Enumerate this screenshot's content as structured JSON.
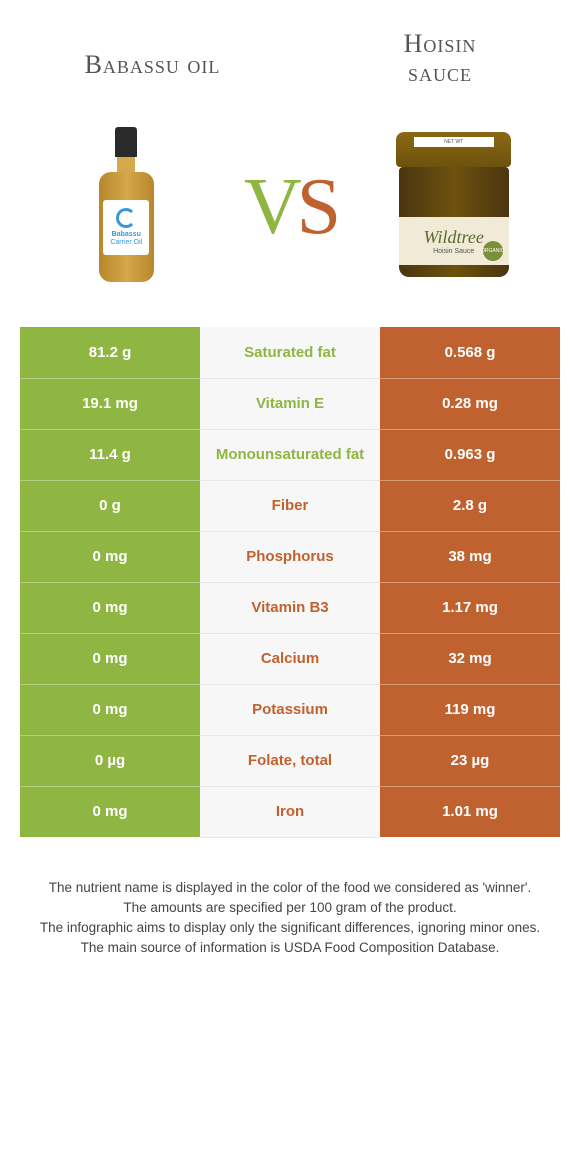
{
  "header": {
    "left_title": "Babassu oil",
    "right_title_line1": "Hoisin",
    "right_title_line2": "sauce"
  },
  "vs_text": {
    "v": "V",
    "s": "S"
  },
  "products": {
    "left": {
      "brand_line1": "Babassu",
      "brand_line2": "Carrier Oil"
    },
    "right": {
      "lid_label": "NET WT",
      "brand": "Wildtree",
      "sub": "Hoisin Sauce",
      "badge": "ORGANIC"
    }
  },
  "colors": {
    "left_bg": "#8fb543",
    "right_bg": "#c0622f",
    "left_text_label": "#8fb543",
    "right_text_label": "#c0622f"
  },
  "rows": [
    {
      "left": "81.2 g",
      "label": "Saturated fat",
      "right": "0.568 g",
      "winner": "left"
    },
    {
      "left": "19.1 mg",
      "label": "Vitamin E",
      "right": "0.28 mg",
      "winner": "left"
    },
    {
      "left": "11.4 g",
      "label": "Monounsaturated fat",
      "right": "0.963 g",
      "winner": "left"
    },
    {
      "left": "0 g",
      "label": "Fiber",
      "right": "2.8 g",
      "winner": "right"
    },
    {
      "left": "0 mg",
      "label": "Phosphorus",
      "right": "38 mg",
      "winner": "right"
    },
    {
      "left": "0 mg",
      "label": "Vitamin B3",
      "right": "1.17 mg",
      "winner": "right"
    },
    {
      "left": "0 mg",
      "label": "Calcium",
      "right": "32 mg",
      "winner": "right"
    },
    {
      "left": "0 mg",
      "label": "Potassium",
      "right": "119 mg",
      "winner": "right"
    },
    {
      "left": "0 µg",
      "label": "Folate, total",
      "right": "23 µg",
      "winner": "right"
    },
    {
      "left": "0 mg",
      "label": "Iron",
      "right": "1.01 mg",
      "winner": "right"
    }
  ],
  "footer": {
    "line1": "The nutrient name is displayed in the color of the food we considered as 'winner'.",
    "line2": "The amounts are specified per 100 gram of the product.",
    "line3": "The infographic aims to display only the significant differences, ignoring minor ones.",
    "line4": "The main source of information is USDA Food Composition Database."
  }
}
